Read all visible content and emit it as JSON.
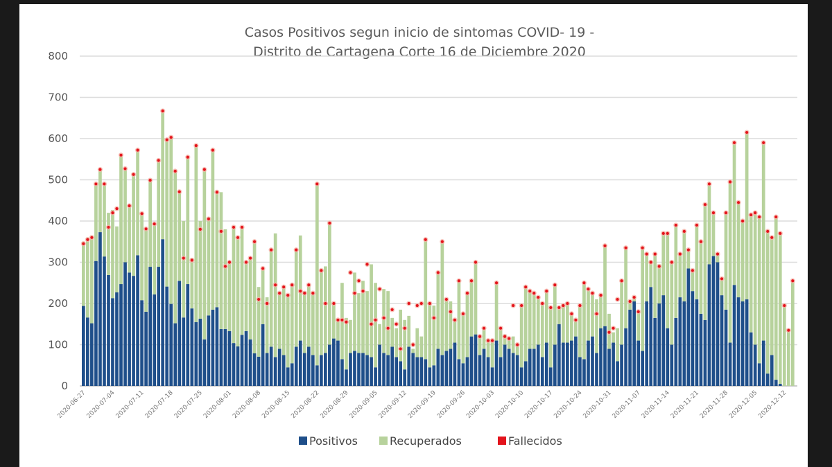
{
  "chart_data": {
    "type": "bar",
    "stacked": true,
    "title": [
      "Casos Positivos segun inicio de sintomas COVID- 19 -",
      "Distrito de Cartagena Corte 16 de Diciembre 2020"
    ],
    "xlabel": "",
    "ylabel": "",
    "ylim": [
      0,
      800
    ],
    "yticks": [
      "0",
      "100",
      "200",
      "300",
      "400",
      "500",
      "600",
      "700",
      "800"
    ],
    "grid": true,
    "legend_position": "bottom",
    "start_date": "2020-06-27",
    "xtick_labels": [
      "2020-06-27",
      "2020-07-04",
      "2020-07-11",
      "2020-07-18",
      "2020-07-25",
      "2020-08-01",
      "2020-08-08",
      "2020-08-15",
      "2020-08-22",
      "2020-08-29",
      "2020-09-05",
      "2020-09-12",
      "2020-09-19",
      "2020-09-26",
      "2020-10-03",
      "2020-10-10",
      "2020-10-17",
      "2020-10-24",
      "2020-10-31",
      "2020-11-07",
      "2020-11-14",
      "2020-11-21",
      "2020-11-28",
      "2020-12-05",
      "2020-12-12"
    ],
    "colors": {
      "Positivos": "#1f4f8a",
      "Recuperados": "#b7d29c",
      "Fallecidos": "#e3141c"
    },
    "positivos": [
      194,
      166,
      152,
      303,
      373,
      314,
      269,
      213,
      227,
      247,
      300,
      275,
      267,
      317,
      208,
      180,
      289,
      222,
      289,
      356,
      241,
      199,
      152,
      255,
      166,
      247,
      188,
      155,
      163,
      113,
      171,
      185,
      191,
      138,
      138,
      133,
      104,
      96,
      124,
      133,
      113,
      79,
      71,
      150,
      80,
      95,
      70,
      90,
      75,
      45,
      55,
      95,
      110,
      80,
      95,
      75,
      50,
      75,
      80,
      100,
      115,
      110,
      65,
      40,
      80,
      85,
      80,
      80,
      75,
      70,
      45,
      100,
      80,
      75,
      95,
      70,
      60,
      40,
      95,
      80,
      70,
      70,
      65,
      45,
      50,
      90,
      75,
      85,
      90,
      105,
      65,
      55,
      70,
      120,
      125,
      75,
      90,
      70,
      45,
      110,
      70,
      100,
      90,
      80,
      75,
      45,
      60,
      90,
      90,
      100,
      70,
      105,
      45,
      100,
      150,
      105,
      105,
      110,
      120,
      70,
      65,
      110,
      120,
      80,
      140,
      145,
      90,
      105,
      60,
      100,
      140,
      185,
      205,
      110,
      85,
      205,
      240,
      165,
      200,
      220,
      140,
      100,
      165,
      215,
      205,
      285,
      230,
      210,
      175,
      160,
      295,
      315,
      300,
      220,
      185,
      105,
      245,
      215,
      205,
      210,
      130,
      100,
      55,
      110,
      30,
      75,
      15,
      5,
      0,
      0,
      0
    ],
    "recuperados": [
      156,
      194,
      213,
      187,
      152,
      176,
      151,
      214,
      160,
      313,
      227,
      162,
      246,
      255,
      210,
      201,
      210,
      171,
      258,
      311,
      356,
      404,
      369,
      216,
      234,
      308,
      122,
      428,
      237,
      412,
      239,
      387,
      279,
      332,
      242,
      167,
      281,
      264,
      261,
      167,
      197,
      271,
      169,
      135,
      135,
      235,
      300,
      135,
      165,
      175,
      190,
      235,
      255,
      150,
      150,
      150,
      440,
      205,
      210,
      295,
      85,
      50,
      185,
      125,
      80,
      190,
      145,
      175,
      155,
      225,
      205,
      50,
      155,
      155,
      70,
      70,
      125,
      120,
      75,
      10,
      70,
      50,
      290,
      155,
      145,
      185,
      275,
      125,
      115,
      55,
      190,
      120,
      155,
      135,
      175,
      45,
      50,
      40,
      65,
      140,
      70,
      25,
      25,
      40,
      25,
      150,
      180,
      140,
      135,
      115,
      130,
      125,
      145,
      145,
      40,
      90,
      95,
      65,
      40,
      125,
      185,
      125,
      105,
      130,
      80,
      195,
      85,
      25,
      80,
      155,
      195,
      20,
      10,
      70,
      250,
      115,
      65,
      155,
      95,
      150,
      230,
      200,
      225,
      105,
      170,
      45,
      50,
      180,
      175,
      280,
      195,
      105,
      20,
      40,
      235,
      390,
      345,
      230,
      195,
      405,
      285,
      320,
      355,
      480,
      345,
      285,
      395,
      365,
      195,
      135,
      255
    ],
    "fallecidos_marker": [
      345,
      355,
      360,
      490,
      525,
      490,
      385,
      420,
      430,
      560,
      527,
      437,
      513,
      572,
      418,
      381,
      499,
      393,
      547,
      667,
      597,
      603,
      521,
      471,
      310,
      555,
      305,
      583,
      380,
      525,
      405,
      572,
      470,
      375,
      290,
      300,
      385,
      360,
      385,
      300,
      310,
      350,
      210,
      285,
      200,
      330,
      245,
      225,
      240,
      220,
      245,
      330,
      230,
      225,
      245,
      225,
      490,
      280,
      200,
      395,
      200,
      160,
      160,
      155,
      275,
      225,
      255,
      230,
      295,
      150,
      160,
      235,
      165,
      140,
      185,
      150,
      90,
      140,
      200,
      100,
      195,
      200,
      355,
      200,
      165,
      275,
      350,
      210,
      180,
      160,
      255,
      175,
      225,
      255,
      300,
      120,
      140,
      110,
      110,
      250,
      140,
      120,
      115,
      195,
      100,
      195,
      240,
      230,
      225,
      215,
      200,
      230,
      190,
      245,
      190,
      195,
      200,
      175,
      160,
      195,
      250,
      235,
      225,
      175,
      220,
      340,
      130,
      140,
      210,
      255,
      335,
      205,
      215,
      180,
      335,
      320,
      300,
      320,
      290,
      370,
      370,
      300,
      390,
      320,
      375,
      330,
      280,
      390,
      350,
      440,
      490,
      420,
      320,
      260,
      420,
      495,
      590,
      445,
      400,
      615,
      415,
      420,
      410,
      590,
      375,
      360,
      410,
      370,
      195,
      135,
      255
    ],
    "legend": [
      "Positivos",
      "Recuperados",
      "Fallecidos"
    ]
  }
}
